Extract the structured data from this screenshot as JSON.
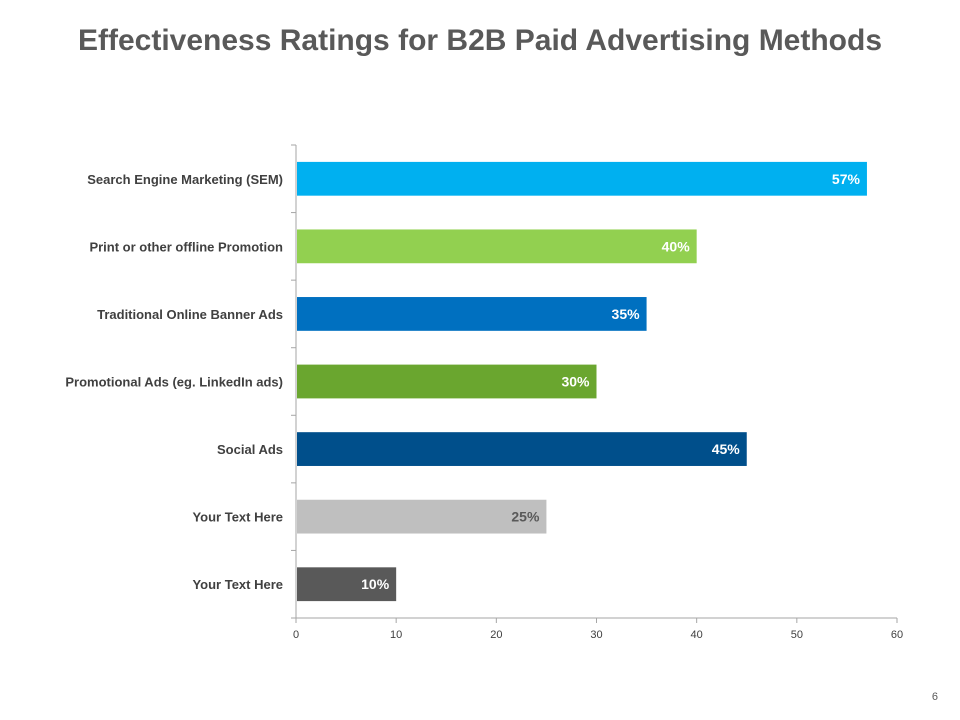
{
  "page": {
    "title": "Effectiveness Ratings for B2B Paid Advertising Methods",
    "page_number": "6"
  },
  "chart_data": {
    "type": "bar",
    "orientation": "horizontal",
    "title": "Effectiveness Ratings for B2B Paid Advertising Methods",
    "xlabel": "",
    "ylabel": "",
    "xlim": [
      0,
      60
    ],
    "xticks": [
      0,
      10,
      20,
      30,
      40,
      50,
      60
    ],
    "grid": false,
    "categories": [
      "Search Engine Marketing (SEM)",
      "Print or other offline Promotion",
      "Traditional Online Banner Ads",
      "Promotional Ads (eg. LinkedIn ads)",
      "Social Ads",
      "Your Text Here",
      "Your Text Here"
    ],
    "values": [
      57,
      40,
      35,
      30,
      45,
      25,
      10
    ],
    "value_labels": [
      "57%",
      "40%",
      "35%",
      "30%",
      "45%",
      "25%",
      "10%"
    ],
    "colors": [
      "#00B0F0",
      "#92D050",
      "#0070C0",
      "#6AA62F",
      "#004F8B",
      "#BFBFBF",
      "#595959"
    ],
    "label_colors": [
      "#ffffff",
      "#ffffff",
      "#ffffff",
      "#ffffff",
      "#ffffff",
      "#595959",
      "#ffffff"
    ]
  }
}
